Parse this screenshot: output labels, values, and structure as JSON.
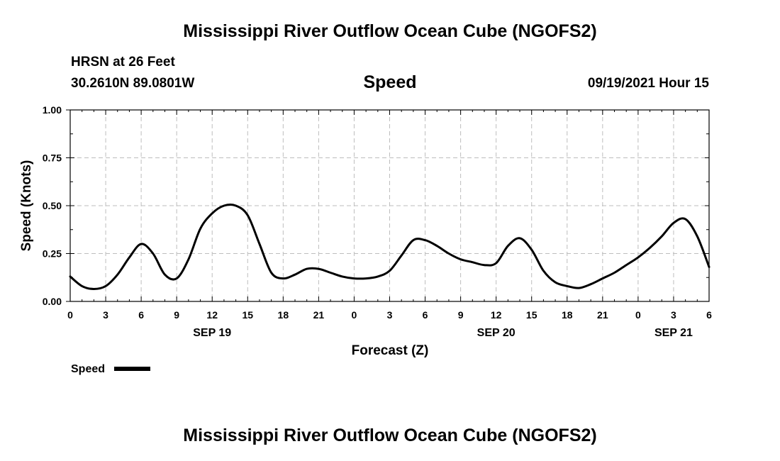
{
  "page_title": "Mississippi River Outflow Ocean Cube (NGOFS2)",
  "footer_title": "Mississippi River Outflow Ocean Cube (NGOFS2)",
  "station": "HRSN at 26 Feet",
  "coordinates": "30.2610N  89.0801W",
  "timestamp": "09/19/2021 Hour 15",
  "colors": {
    "line": "#000000",
    "grid": "#bdbdbd",
    "axis": "#000000"
  },
  "chart_data": {
    "type": "line",
    "title": "Speed",
    "xlabel": "Forecast (Z)",
    "ylabel": "Speed (Knots)",
    "xlim": [
      0,
      54
    ],
    "ylim": [
      0,
      1
    ],
    "yticks": [
      0,
      0.25,
      0.5,
      0.75,
      1.0
    ],
    "ytick_labels": [
      "0.00",
      "0.25",
      "0.50",
      "0.75",
      "1.00"
    ],
    "xticks": [
      0,
      3,
      6,
      9,
      12,
      15,
      18,
      21,
      24,
      27,
      30,
      33,
      36,
      39,
      42,
      45,
      48,
      51,
      54
    ],
    "xtick_labels": [
      "0",
      "3",
      "6",
      "9",
      "12",
      "15",
      "18",
      "21",
      "0",
      "3",
      "6",
      "9",
      "12",
      "15",
      "18",
      "21",
      "0",
      "3",
      "6"
    ],
    "date_labels": [
      {
        "x": 12,
        "text": "SEP 19"
      },
      {
        "x": 36,
        "text": "SEP 20"
      },
      {
        "x": 51,
        "text": "SEP 21"
      }
    ],
    "grid": true,
    "legend": {
      "position": "bottom-left",
      "label": "Speed"
    },
    "series": [
      {
        "name": "Speed",
        "x": [
          0,
          1,
          2,
          3,
          4,
          5,
          6,
          7,
          8,
          9,
          10,
          11,
          12,
          13,
          14,
          15,
          16,
          17,
          18,
          19,
          20,
          21,
          22,
          23,
          24,
          25,
          26,
          27,
          28,
          29,
          30,
          31,
          32,
          33,
          34,
          35,
          36,
          37,
          38,
          39,
          40,
          41,
          42,
          43,
          44,
          45,
          46,
          47,
          48,
          49,
          50,
          51,
          52,
          53,
          54
        ],
        "values": [
          0.13,
          0.08,
          0.065,
          0.08,
          0.14,
          0.23,
          0.3,
          0.25,
          0.14,
          0.12,
          0.22,
          0.38,
          0.46,
          0.5,
          0.5,
          0.45,
          0.3,
          0.15,
          0.12,
          0.14,
          0.17,
          0.17,
          0.15,
          0.13,
          0.12,
          0.12,
          0.13,
          0.16,
          0.24,
          0.32,
          0.32,
          0.29,
          0.25,
          0.22,
          0.205,
          0.19,
          0.2,
          0.29,
          0.33,
          0.27,
          0.16,
          0.1,
          0.08,
          0.07,
          0.09,
          0.12,
          0.15,
          0.19,
          0.23,
          0.28,
          0.34,
          0.41,
          0.43,
          0.34,
          0.18
        ]
      }
    ]
  }
}
